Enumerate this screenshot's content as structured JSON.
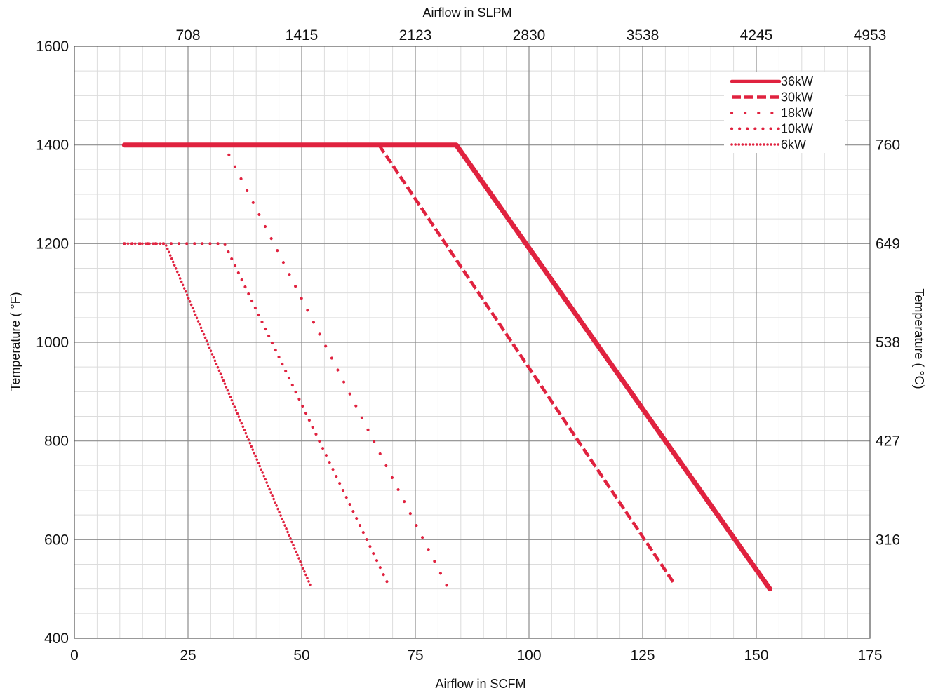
{
  "chart_data": {
    "type": "line",
    "title": "",
    "xlabel": "Airflow in SCFM",
    "ylabel": "Temperature ( °F)",
    "x2label": "Airflow in SLPM",
    "y2label": "Temperature ( °C)",
    "xlim": [
      0,
      175
    ],
    "ylim": [
      400,
      1600
    ],
    "x_ticks": [
      0,
      25,
      50,
      75,
      100,
      125,
      150,
      175
    ],
    "y_ticks": [
      400,
      600,
      800,
      1000,
      1200,
      1400,
      1600
    ],
    "x2_ticks": [
      {
        "at": 25,
        "label": "708"
      },
      {
        "at": 50,
        "label": "1415"
      },
      {
        "at": 75,
        "label": "2123"
      },
      {
        "at": 100,
        "label": "2830"
      },
      {
        "at": 125,
        "label": "3538"
      },
      {
        "at": 150,
        "label": "4245"
      },
      {
        "at": 175,
        "label": "4953"
      }
    ],
    "y2_ticks": [
      {
        "at": 600,
        "label": "316"
      },
      {
        "at": 800,
        "label": "427"
      },
      {
        "at": 1000,
        "label": "538"
      },
      {
        "at": 1200,
        "label": "649"
      },
      {
        "at": 1400,
        "label": "760"
      }
    ],
    "grid": true,
    "legend_position": "top-right",
    "color": "#e0223f",
    "series": [
      {
        "name": "36kW",
        "style": "solid",
        "points": [
          [
            11,
            1400
          ],
          [
            84,
            1400
          ],
          [
            153,
            500
          ]
        ]
      },
      {
        "name": "30kW",
        "style": "dashed",
        "points": [
          [
            67,
            1400
          ],
          [
            132,
            510
          ]
        ]
      },
      {
        "name": "18kW",
        "style": "dotted-sparse",
        "points": [
          [
            34,
            1380
          ],
          [
            82,
            505
          ]
        ]
      },
      {
        "name": "10kW",
        "style": "dotted",
        "points": [
          [
            11,
            1200
          ],
          [
            33,
            1200
          ],
          [
            69,
            510
          ]
        ]
      },
      {
        "name": "6kW",
        "style": "dotted-dense",
        "points": [
          [
            11,
            1200
          ],
          [
            20,
            1200
          ],
          [
            52,
            505
          ]
        ]
      }
    ]
  }
}
